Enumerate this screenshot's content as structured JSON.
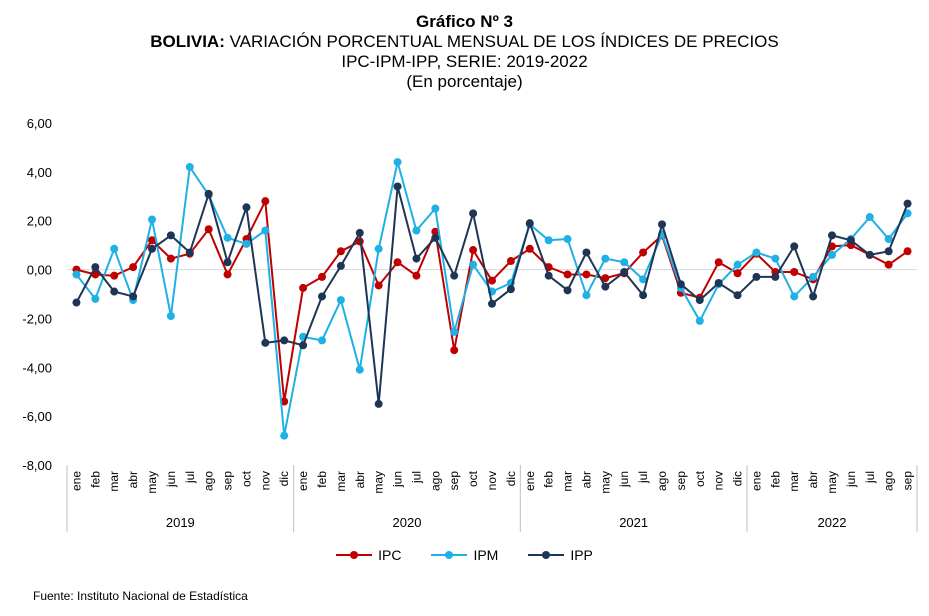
{
  "header": {
    "title": "Gráfico Nº 3",
    "subtitle_bold": "BOLIVIA:",
    "subtitle_rest": " VARIACIÓN PORCENTUAL MENSUAL DE LOS ÍNDICES DE PRECIOS",
    "subtitle2": "IPC-IPM-IPP, SERIE: 2019-2022",
    "subtitle3": "(En porcentaje)"
  },
  "source": "Fuente: Instituto Nacional de Estadística",
  "colors": {
    "IPC": "#c00000",
    "IPM": "#1fb0e6",
    "IPP": "#1f3556"
  },
  "chart_data": {
    "type": "line",
    "ylim": [
      -8,
      6
    ],
    "yticks": [
      "6,00",
      "4,00",
      "2,00",
      "0,00",
      "-2,00",
      "-4,00",
      "-6,00",
      "-8,00"
    ],
    "yticks_values": [
      6,
      4,
      2,
      0,
      -2,
      -4,
      -6,
      -8
    ],
    "months": [
      "ene",
      "feb",
      "mar",
      "abr",
      "may",
      "jun",
      "jul",
      "ago",
      "sep",
      "oct",
      "nov",
      "dic"
    ],
    "years": [
      "2019",
      "2020",
      "2021",
      "2022"
    ],
    "categories": [
      "ene",
      "feb",
      "mar",
      "abr",
      "may",
      "jun",
      "jul",
      "ago",
      "sep",
      "oct",
      "nov",
      "dic",
      "ene",
      "feb",
      "mar",
      "abr",
      "may",
      "jun",
      "jul",
      "ago",
      "sep",
      "oct",
      "nov",
      "dic",
      "ene",
      "feb",
      "mar",
      "abr",
      "may",
      "jun",
      "jul",
      "ago",
      "sep",
      "oct",
      "nov",
      "dic",
      "ene",
      "feb",
      "mar",
      "abr",
      "may",
      "jun",
      "jul",
      "ago",
      "sep"
    ],
    "legend_position": "bottom",
    "series": [
      {
        "name": "IPC",
        "values": [
          0.0,
          -0.2,
          -0.25,
          0.1,
          1.2,
          0.45,
          0.65,
          1.65,
          -0.2,
          1.25,
          2.8,
          -5.4,
          -0.75,
          -0.3,
          0.75,
          1.15,
          -0.65,
          0.3,
          -0.25,
          1.55,
          -3.3,
          0.8,
          -0.45,
          0.35,
          0.85,
          0.1,
          -0.2,
          -0.2,
          -0.35,
          -0.15,
          0.7,
          1.4,
          -0.95,
          -1.15,
          0.3,
          -0.15,
          0.65,
          -0.1,
          -0.1,
          -0.4,
          0.95,
          1.0,
          0.6,
          0.2,
          0.75
        ]
      },
      {
        "name": "IPM",
        "values": [
          -0.2,
          -1.2,
          0.85,
          -1.25,
          2.05,
          -1.9,
          4.2,
          3.05,
          1.3,
          1.05,
          1.6,
          -6.8,
          -2.75,
          -2.9,
          -1.25,
          -4.1,
          0.85,
          4.4,
          1.6,
          2.5,
          -2.55,
          0.2,
          -0.9,
          -0.55,
          1.85,
          1.2,
          1.25,
          -1.05,
          0.45,
          0.3,
          -0.4,
          1.45,
          -0.75,
          -2.1,
          -0.6,
          0.2,
          0.7,
          0.45,
          -1.1,
          -0.3,
          0.6,
          1.25,
          2.15,
          1.25,
          2.3
        ]
      },
      {
        "name": "IPP",
        "values": [
          -1.35,
          0.1,
          -0.9,
          -1.1,
          0.85,
          1.4,
          0.7,
          3.1,
          0.3,
          2.55,
          -3.0,
          -2.9,
          -3.1,
          -1.1,
          0.15,
          1.5,
          -5.5,
          3.4,
          0.45,
          1.3,
          -0.25,
          2.3,
          -1.4,
          -0.8,
          1.9,
          -0.25,
          -0.85,
          0.7,
          -0.7,
          -0.1,
          -1.05,
          1.85,
          -0.6,
          -1.25,
          -0.55,
          -1.05,
          -0.3,
          -0.3,
          0.95,
          -1.1,
          1.4,
          1.2,
          0.6,
          0.75,
          2.7
        ]
      }
    ]
  }
}
